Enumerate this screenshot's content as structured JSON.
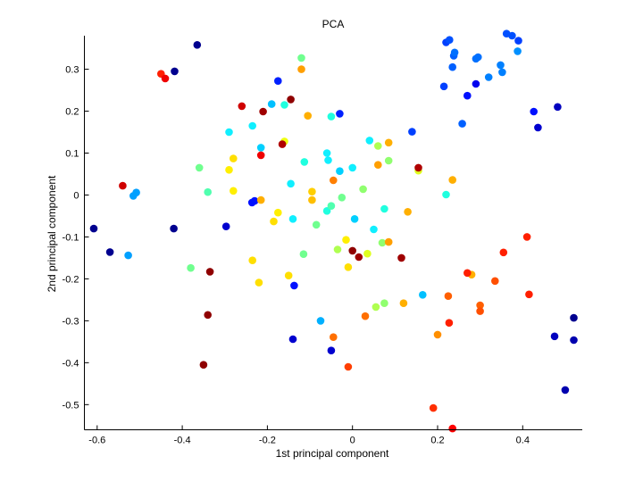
{
  "chart_data": {
    "type": "scatter",
    "title": "PCA",
    "xlabel": "1st principal component",
    "ylabel": "2nd principal component",
    "xlim": [
      -0.63,
      0.54
    ],
    "ylim": [
      -0.56,
      0.38
    ],
    "xticks": [
      -0.6,
      -0.4,
      -0.2,
      0,
      0.2,
      0.4
    ],
    "xtick_labels": [
      "-0.6",
      "-0.4",
      "-0.2",
      "0",
      "0.2",
      "0.4"
    ],
    "yticks": [
      -0.5,
      -0.4,
      -0.3,
      -0.2,
      -0.1,
      0,
      0.1,
      0.2,
      0.3
    ],
    "ytick_labels": [
      "-0.5",
      "-0.4",
      "-0.3",
      "-0.2",
      "-0.1",
      "0",
      "0.1",
      "0.2",
      "0.3"
    ],
    "grid": false,
    "legend": "none",
    "colormap": "jet",
    "points": [
      {
        "x": -0.365,
        "y": 0.358,
        "color": "#00008F"
      },
      {
        "x": -0.418,
        "y": 0.295,
        "color": "#00008F"
      },
      {
        "x": -0.608,
        "y": -0.08,
        "color": "#00008F"
      },
      {
        "x": -0.57,
        "y": -0.136,
        "color": "#00008F"
      },
      {
        "x": -0.42,
        "y": -0.08,
        "color": "#00008F"
      },
      {
        "x": -0.297,
        "y": -0.075,
        "color": "#0000CF"
      },
      {
        "x": -0.14,
        "y": -0.344,
        "color": "#0000CF"
      },
      {
        "x": -0.05,
        "y": -0.371,
        "color": "#0000CF"
      },
      {
        "x": -0.137,
        "y": -0.216,
        "color": "#0010FF"
      },
      {
        "x": -0.236,
        "y": -0.018,
        "color": "#0010FF"
      },
      {
        "x": -0.23,
        "y": -0.014,
        "color": "#0010FF"
      },
      {
        "x": -0.175,
        "y": 0.272,
        "color": "#0020FF"
      },
      {
        "x": -0.03,
        "y": 0.194,
        "color": "#0020FF"
      },
      {
        "x": 0.14,
        "y": 0.151,
        "color": "#0040FF"
      },
      {
        "x": 0.475,
        "y": -0.337,
        "color": "#0000BF"
      },
      {
        "x": 0.52,
        "y": -0.293,
        "color": "#00008F"
      },
      {
        "x": 0.52,
        "y": -0.346,
        "color": "#0000AF"
      },
      {
        "x": 0.5,
        "y": -0.465,
        "color": "#0000AF"
      },
      {
        "x": 0.482,
        "y": 0.21,
        "color": "#0000BF"
      },
      {
        "x": 0.436,
        "y": 0.161,
        "color": "#0000CF"
      },
      {
        "x": 0.426,
        "y": 0.199,
        "color": "#0010FF"
      },
      {
        "x": 0.27,
        "y": 0.237,
        "color": "#0010FF"
      },
      {
        "x": 0.29,
        "y": 0.265,
        "color": "#0000EF"
      },
      {
        "x": 0.258,
        "y": 0.17,
        "color": "#0060FF"
      },
      {
        "x": 0.215,
        "y": 0.259,
        "color": "#0040FF"
      },
      {
        "x": 0.22,
        "y": 0.364,
        "color": "#0040FF"
      },
      {
        "x": 0.228,
        "y": 0.37,
        "color": "#0050FF"
      },
      {
        "x": 0.235,
        "y": 0.305,
        "color": "#0060FF"
      },
      {
        "x": 0.238,
        "y": 0.332,
        "color": "#0060FF"
      },
      {
        "x": 0.24,
        "y": 0.34,
        "color": "#0070FF"
      },
      {
        "x": 0.29,
        "y": 0.325,
        "color": "#0070FF"
      },
      {
        "x": 0.295,
        "y": 0.329,
        "color": "#0070FF"
      },
      {
        "x": 0.32,
        "y": 0.281,
        "color": "#0080FF"
      },
      {
        "x": 0.348,
        "y": 0.31,
        "color": "#0080FF"
      },
      {
        "x": 0.352,
        "y": 0.293,
        "color": "#0080FF"
      },
      {
        "x": 0.362,
        "y": 0.385,
        "color": "#0050FF"
      },
      {
        "x": 0.375,
        "y": 0.38,
        "color": "#0050FF"
      },
      {
        "x": 0.39,
        "y": 0.368,
        "color": "#0040FF"
      },
      {
        "x": 0.388,
        "y": 0.343,
        "color": "#0090FF"
      },
      {
        "x": -0.527,
        "y": -0.144,
        "color": "#00A0FF"
      },
      {
        "x": -0.515,
        "y": -0.002,
        "color": "#00A0FF"
      },
      {
        "x": -0.508,
        "y": 0.006,
        "color": "#00A0FF"
      },
      {
        "x": -0.19,
        "y": 0.217,
        "color": "#00C0FF"
      },
      {
        "x": -0.16,
        "y": 0.215,
        "color": "#20FFDF"
      },
      {
        "x": -0.145,
        "y": 0.027,
        "color": "#10EFFF"
      },
      {
        "x": -0.29,
        "y": 0.15,
        "color": "#10EFFF"
      },
      {
        "x": -0.235,
        "y": 0.165,
        "color": "#10EFFF"
      },
      {
        "x": -0.215,
        "y": 0.113,
        "color": "#00D0FF"
      },
      {
        "x": -0.113,
        "y": 0.079,
        "color": "#20FFDF"
      },
      {
        "x": -0.06,
        "y": 0.1,
        "color": "#10EFFF"
      },
      {
        "x": -0.057,
        "y": 0.083,
        "color": "#10EFFF"
      },
      {
        "x": -0.05,
        "y": 0.187,
        "color": "#20FFDF"
      },
      {
        "x": -0.03,
        "y": 0.057,
        "color": "#00D0FF"
      },
      {
        "x": 0.0,
        "y": 0.065,
        "color": "#10EFFF"
      },
      {
        "x": 0.04,
        "y": 0.13,
        "color": "#10EFFF"
      },
      {
        "x": 0.05,
        "y": -0.082,
        "color": "#10EFFF"
      },
      {
        "x": 0.005,
        "y": -0.057,
        "color": "#00D0FF"
      },
      {
        "x": -0.06,
        "y": -0.038,
        "color": "#20FFDF"
      },
      {
        "x": 0.075,
        "y": -0.033,
        "color": "#20FFDF"
      },
      {
        "x": -0.14,
        "y": -0.057,
        "color": "#10EFFF"
      },
      {
        "x": -0.075,
        "y": -0.3,
        "color": "#00B0FF"
      },
      {
        "x": 0.165,
        "y": -0.238,
        "color": "#00C0FF"
      },
      {
        "x": 0.22,
        "y": 0.001,
        "color": "#20FFDF"
      },
      {
        "x": -0.12,
        "y": 0.327,
        "color": "#70FF8F"
      },
      {
        "x": -0.36,
        "y": 0.065,
        "color": "#70FF8F"
      },
      {
        "x": -0.34,
        "y": 0.007,
        "color": "#50FFAF"
      },
      {
        "x": -0.38,
        "y": -0.174,
        "color": "#70FF8F"
      },
      {
        "x": -0.115,
        "y": -0.141,
        "color": "#70FF8F"
      },
      {
        "x": -0.085,
        "y": -0.071,
        "color": "#70FF8F"
      },
      {
        "x": -0.05,
        "y": -0.026,
        "color": "#50FFAF"
      },
      {
        "x": -0.025,
        "y": -0.006,
        "color": "#70FF8F"
      },
      {
        "x": 0.025,
        "y": 0.014,
        "color": "#90FF6F"
      },
      {
        "x": 0.06,
        "y": 0.117,
        "color": "#AFFF50"
      },
      {
        "x": 0.085,
        "y": 0.082,
        "color": "#90FF6F"
      },
      {
        "x": 0.07,
        "y": -0.114,
        "color": "#90FF6F"
      },
      {
        "x": 0.055,
        "y": -0.267,
        "color": "#AFFF50"
      },
      {
        "x": 0.075,
        "y": -0.258,
        "color": "#90FF6F"
      },
      {
        "x": -0.035,
        "y": -0.13,
        "color": "#AFFF50"
      },
      {
        "x": 0.035,
        "y": -0.14,
        "color": "#DFFF20"
      },
      {
        "x": -0.16,
        "y": 0.128,
        "color": "#EFFF10"
      },
      {
        "x": 0.155,
        "y": 0.058,
        "color": "#DFFF20"
      },
      {
        "x": -0.29,
        "y": 0.06,
        "color": "#FFEF00"
      },
      {
        "x": -0.28,
        "y": 0.087,
        "color": "#FFDF00"
      },
      {
        "x": -0.28,
        "y": 0.01,
        "color": "#FFEF00"
      },
      {
        "x": -0.175,
        "y": -0.042,
        "color": "#FFEF00"
      },
      {
        "x": -0.185,
        "y": -0.063,
        "color": "#FFDF00"
      },
      {
        "x": -0.235,
        "y": -0.156,
        "color": "#FFDF00"
      },
      {
        "x": -0.22,
        "y": -0.209,
        "color": "#FFDF00"
      },
      {
        "x": -0.15,
        "y": -0.192,
        "color": "#FFDF00"
      },
      {
        "x": -0.095,
        "y": 0.008,
        "color": "#FFCF00"
      },
      {
        "x": -0.095,
        "y": -0.012,
        "color": "#FFBF00"
      },
      {
        "x": -0.015,
        "y": -0.107,
        "color": "#FFEF00"
      },
      {
        "x": -0.01,
        "y": -0.172,
        "color": "#FFDF00"
      },
      {
        "x": -0.215,
        "y": -0.012,
        "color": "#FFAF00"
      },
      {
        "x": -0.105,
        "y": 0.189,
        "color": "#FFAF00"
      },
      {
        "x": -0.12,
        "y": 0.3,
        "color": "#FF9F00"
      },
      {
        "x": 0.085,
        "y": 0.125,
        "color": "#FFAF00"
      },
      {
        "x": 0.06,
        "y": 0.072,
        "color": "#FF9F00"
      },
      {
        "x": 0.13,
        "y": -0.04,
        "color": "#FFAF00"
      },
      {
        "x": 0.085,
        "y": -0.112,
        "color": "#FF9F00"
      },
      {
        "x": 0.12,
        "y": -0.258,
        "color": "#FFAF00"
      },
      {
        "x": 0.235,
        "y": 0.036,
        "color": "#FFAF00"
      },
      {
        "x": 0.28,
        "y": -0.19,
        "color": "#FFAF00"
      },
      {
        "x": -0.045,
        "y": 0.035,
        "color": "#FF7F00"
      },
      {
        "x": -0.045,
        "y": -0.339,
        "color": "#FF6F00"
      },
      {
        "x": 0.03,
        "y": -0.289,
        "color": "#FF6F00"
      },
      {
        "x": 0.2,
        "y": -0.333,
        "color": "#FF8F00"
      },
      {
        "x": 0.225,
        "y": -0.241,
        "color": "#FF5F00"
      },
      {
        "x": 0.3,
        "y": -0.263,
        "color": "#FF5F00"
      },
      {
        "x": 0.3,
        "y": -0.277,
        "color": "#FF4F00"
      },
      {
        "x": 0.335,
        "y": -0.205,
        "color": "#FF4F00"
      },
      {
        "x": -0.01,
        "y": -0.41,
        "color": "#FF3F00"
      },
      {
        "x": 0.19,
        "y": -0.508,
        "color": "#FF2F00"
      },
      {
        "x": 0.227,
        "y": -0.305,
        "color": "#FF1F00"
      },
      {
        "x": 0.27,
        "y": -0.186,
        "color": "#FF1F00"
      },
      {
        "x": 0.355,
        "y": -0.137,
        "color": "#FF1F00"
      },
      {
        "x": 0.41,
        "y": -0.1,
        "color": "#FF1F00"
      },
      {
        "x": 0.415,
        "y": -0.237,
        "color": "#FF1F00"
      },
      {
        "x": 0.235,
        "y": -0.557,
        "color": "#FF0000"
      },
      {
        "x": -0.45,
        "y": 0.289,
        "color": "#FF1F00"
      },
      {
        "x": -0.44,
        "y": 0.278,
        "color": "#EF0000"
      },
      {
        "x": -0.54,
        "y": 0.022,
        "color": "#CF0000"
      },
      {
        "x": -0.26,
        "y": 0.212,
        "color": "#CF0000"
      },
      {
        "x": -0.215,
        "y": 0.095,
        "color": "#EF0000"
      },
      {
        "x": -0.21,
        "y": 0.199,
        "color": "#9F0000"
      },
      {
        "x": -0.165,
        "y": 0.121,
        "color": "#AF0000"
      },
      {
        "x": -0.145,
        "y": 0.228,
        "color": "#8F0000"
      },
      {
        "x": 0.0,
        "y": -0.133,
        "color": "#8F0000"
      },
      {
        "x": 0.015,
        "y": -0.148,
        "color": "#9F0000"
      },
      {
        "x": 0.115,
        "y": -0.15,
        "color": "#9F0000"
      },
      {
        "x": 0.155,
        "y": 0.065,
        "color": "#AF0000"
      },
      {
        "x": -0.335,
        "y": -0.183,
        "color": "#8F0000"
      },
      {
        "x": -0.34,
        "y": -0.286,
        "color": "#8F0000"
      },
      {
        "x": -0.35,
        "y": -0.405,
        "color": "#8F0000"
      }
    ]
  }
}
